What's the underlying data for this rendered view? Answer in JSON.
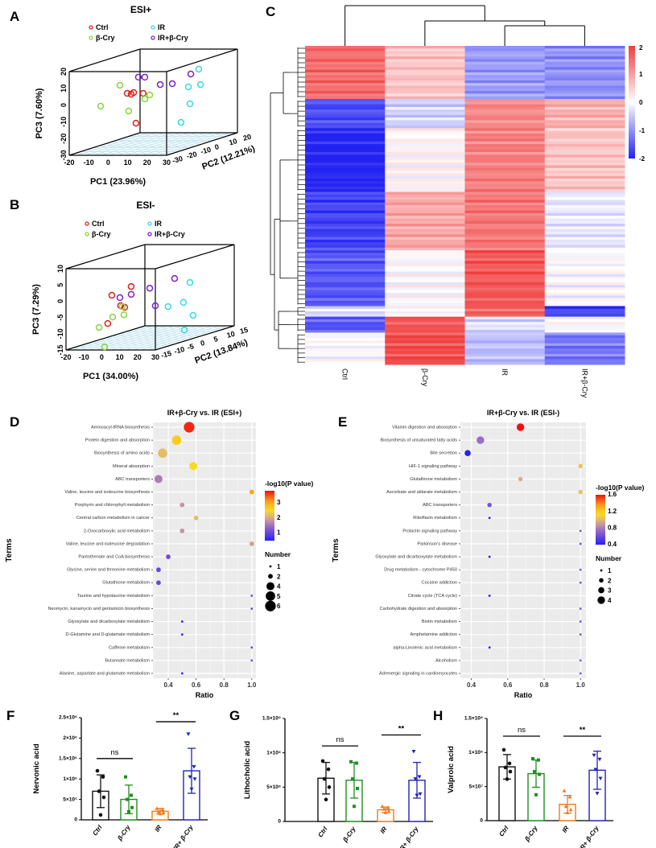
{
  "panels": {
    "A": "A",
    "B": "B",
    "C": "C",
    "D": "D",
    "E": "E",
    "F": "F",
    "G": "G",
    "H": "H"
  },
  "chart_data": [
    {
      "id": "A",
      "type": "scatter",
      "subtype": "3d-pca",
      "title": "ESI+",
      "xlabel": "PC1 (23.96%)",
      "ylabel": "PC3 (7.60%)",
      "zlabel": "PC2 (12.21%)",
      "xlim": [
        -20,
        30
      ],
      "ylim": [
        -30,
        20
      ],
      "zlim": [
        -30,
        20
      ],
      "xticks": [
        "-20",
        "-10",
        "0",
        "10",
        "20",
        "30"
      ],
      "yticks": [
        "-30",
        "-20",
        "-10",
        "0",
        "10",
        "20"
      ],
      "zticks": [
        "-30",
        "-20",
        "-10",
        "0",
        "10",
        "20"
      ],
      "legend_position": "top",
      "series": [
        {
          "name": "Ctrl",
          "color": "#e0201c",
          "points": [
            [
              2.5,
              -20,
              4.3
            ],
            [
              4.5,
              -20,
              3.8
            ],
            [
              5.8,
              -20,
              4.8
            ],
            [
              10.7,
              -20,
              4.3
            ],
            [
              7.0,
              -20,
              -13.5
            ]
          ]
        },
        {
          "name": "β-Cry",
          "color": "#88d43c",
          "points": [
            [
              2.4,
              -25,
              10.5
            ],
            [
              17.7,
              -25,
              4.7
            ],
            [
              15.2,
              -25,
              2.3
            ],
            [
              -7.5,
              -25,
              -2.0
            ],
            [
              6.9,
              -25,
              -4.9
            ]
          ]
        },
        {
          "name": "IR",
          "color": "#3ad8e0",
          "points": [
            [
              17.4,
              10,
              10.7
            ],
            [
              18.3,
              10,
              1.5
            ],
            [
              12.1,
              10,
              0.1
            ],
            [
              12.9,
              10,
              -10.0
            ],
            [
              8.3,
              10,
              -21.1
            ]
          ]
        },
        {
          "name": "IR+β-Cry",
          "color": "#7a22c8",
          "points": [
            [
              -6.3,
              0,
              8.6
            ],
            [
              -3.0,
              0,
              8.6
            ],
            [
              4.9,
              0,
              4.2
            ],
            [
              11.1,
              0,
              4.7
            ],
            [
              20.6,
              0,
              10.5
            ]
          ]
        }
      ]
    },
    {
      "id": "B",
      "type": "scatter",
      "subtype": "3d-pca",
      "title": "ESI-",
      "xlabel": "PC1 (34.00%)",
      "ylabel": "PC3 (7.29%)",
      "zlabel": "PC2 (13.84%)",
      "xlim": [
        -20,
        30
      ],
      "ylim": [
        -15,
        10
      ],
      "zlim": [
        -15,
        15
      ],
      "xticks": [
        "-20",
        "-10",
        "0",
        "10",
        "20",
        "30"
      ],
      "yticks": [
        "-15",
        "-10",
        "-5",
        "0",
        "5",
        "10"
      ],
      "zticks": [
        "-15",
        "-10",
        "-5",
        "0",
        "5",
        "10",
        "15"
      ],
      "legend_position": "top",
      "series": [
        {
          "name": "Ctrl",
          "color": "#e0201c",
          "points": [
            [
              9.1,
              -10,
              3.3
            ],
            [
              -1.7,
              -10,
              0.6
            ],
            [
              3.2,
              -10,
              -2.6
            ],
            [
              5.5,
              -10,
              -3.1
            ],
            [
              -4.0,
              -10,
              -8.1
            ]
          ]
        },
        {
          "name": "β-Cry",
          "color": "#88d43c",
          "points": [
            [
              7.1,
              -12,
              -2.4
            ],
            [
              8.0,
              -12,
              -4.9
            ],
            [
              1.7,
              -12,
              -5.6
            ],
            [
              -5.9,
              -12,
              -8.8
            ],
            [
              -2.8,
              -12,
              -14.8
            ]
          ]
        },
        {
          "name": "IR",
          "color": "#3ad8e0",
          "points": [
            [
              19.9,
              5,
              0.8
            ],
            [
              16.3,
              5,
              -5.3
            ],
            [
              7.7,
              5,
              -6.6
            ],
            [
              21.7,
              5,
              -9.3
            ],
            [
              16.8,
              5,
              -13.8
            ]
          ]
        },
        {
          "name": "IR+β-Cry",
          "color": "#7a22c8",
          "points": [
            [
              18.7,
              0,
              3.3
            ],
            [
              4.8,
              0,
              0.3
            ],
            [
              -11.9,
              0,
              -2.6
            ],
            [
              -5.6,
              0,
              -1.6
            ],
            [
              7.9,
              0,
              -5.1
            ]
          ]
        }
      ]
    },
    {
      "id": "C",
      "type": "heatmap",
      "columns": [
        "Ctrl",
        "β-Cry",
        "IR",
        "IR+β-Cry"
      ],
      "color_range": [
        -2,
        2
      ],
      "colorbar_ticks": [
        "2",
        "1",
        "0",
        "-1",
        "-2"
      ],
      "colors": {
        "low": "#2222f2",
        "mid": "#ffffff",
        "high": "#f03c3c"
      },
      "row_clusters": [
        {
          "rows": 20,
          "values": [
            1.5,
            0.6,
            -0.9,
            -1.0
          ]
        },
        {
          "rows": 11,
          "values": [
            -1.6,
            -0.4,
            1.2,
            0.8
          ]
        },
        {
          "rows": 24,
          "values": [
            -2.0,
            0.1,
            1.3,
            0.6
          ]
        },
        {
          "rows": 22,
          "values": [
            -1.7,
            0.9,
            1.4,
            -0.2
          ]
        },
        {
          "rows": 21,
          "values": [
            -1.5,
            0.0,
            1.7,
            0.0
          ]
        },
        {
          "rows": 4,
          "values": [
            -0.3,
            0.0,
            1.6,
            -1.7
          ]
        },
        {
          "rows": 6,
          "values": [
            -1.5,
            1.7,
            -0.3,
            0.0
          ]
        },
        {
          "rows": 12,
          "values": [
            0.0,
            1.8,
            -0.6,
            -1.2
          ]
        }
      ]
    },
    {
      "id": "D",
      "type": "scatter",
      "subtype": "bubble",
      "title": "IR+β-Cry vs. IR (ESI+)",
      "xlabel": "Ratio",
      "ylabel": "Terms",
      "xlim": [
        0.29,
        1.03
      ],
      "xticks": [
        "0.4",
        "0.6",
        "0.8",
        "1.0"
      ],
      "grid": true,
      "color_label": "-log10(P value)",
      "color_range": [
        0.5,
        3.8
      ],
      "color_ticks": [
        "3",
        "2",
        "1"
      ],
      "size_label": "Number",
      "size_legend": [
        1,
        2,
        4,
        5,
        6
      ],
      "legend_position": "right",
      "terms": [
        {
          "term": "Aminoacyl-tRNA biosynthesis",
          "ratio": 0.55,
          "logp": 3.7,
          "number": 6
        },
        {
          "term": "Protein digestion and absorption",
          "ratio": 0.46,
          "logp": 2.7,
          "number": 5
        },
        {
          "term": "Biosynthesis of amino acids",
          "ratio": 0.36,
          "logp": 2.2,
          "number": 5
        },
        {
          "term": "Mineral absorption",
          "ratio": 0.58,
          "logp": 2.5,
          "number": 4
        },
        {
          "term": "ABC transporters",
          "ratio": 0.33,
          "logp": 1.6,
          "number": 4
        },
        {
          "term": "Valine, leucine and isoleucine biosynthesis",
          "ratio": 1.0,
          "logp": 3.0,
          "number": 2
        },
        {
          "term": "Porphyrin and chlorophyll metabolism",
          "ratio": 0.5,
          "logp": 1.8,
          "number": 2
        },
        {
          "term": "Central carbon metabolism in cancer",
          "ratio": 0.6,
          "logp": 2.2,
          "number": 2
        },
        {
          "term": "2-Oxocarboxylic acid metabolism",
          "ratio": 0.5,
          "logp": 1.8,
          "number": 2
        },
        {
          "term": "Valine, leucine and isoleucine degradation",
          "ratio": 1.0,
          "logp": 1.9,
          "number": 2
        },
        {
          "term": "Pantothenate and CoA biosynthesis",
          "ratio": 0.4,
          "logp": 1.1,
          "number": 2
        },
        {
          "term": "Glycine, serine and threonine metabolism",
          "ratio": 0.33,
          "logp": 1.0,
          "number": 2
        },
        {
          "term": "Glutathione metabolism",
          "ratio": 0.33,
          "logp": 1.0,
          "number": 2
        },
        {
          "term": "Taurine and hypotaurine metabolism",
          "ratio": 1.0,
          "logp": 1.0,
          "number": 1
        },
        {
          "term": "Neomycin, kanamycin and gentamicin biosynthesis",
          "ratio": 1.0,
          "logp": 1.0,
          "number": 1
        },
        {
          "term": "Glyoxylate and dicarboxylate metabolism",
          "ratio": 0.5,
          "logp": 0.6,
          "number": 1
        },
        {
          "term": "D-Glutamine and D-glutamate metabolism",
          "ratio": 0.5,
          "logp": 0.6,
          "number": 1
        },
        {
          "term": "Caffeine metabolism",
          "ratio": 1.0,
          "logp": 1.0,
          "number": 1
        },
        {
          "term": "Butanoate metabolism",
          "ratio": 1.0,
          "logp": 1.0,
          "number": 1
        },
        {
          "term": "Alanine, aspartate and glutamate metabolism",
          "ratio": 0.5,
          "logp": 0.6,
          "number": 1
        }
      ]
    },
    {
      "id": "E",
      "type": "scatter",
      "subtype": "bubble",
      "title": "IR+β-Cry vs. IR (ESI-)",
      "xlabel": "Ratio",
      "ylabel": "Terms",
      "xlim": [
        0.34,
        1.03
      ],
      "xticks": [
        "0.4",
        "0.6",
        "0.8",
        "1.0"
      ],
      "grid": true,
      "color_label": "-log10(P value)",
      "color_range": [
        0.4,
        1.6
      ],
      "color_ticks": [
        "1.6",
        "1.2",
        "0.8",
        "0.4"
      ],
      "size_label": "Number",
      "size_legend": [
        1,
        2,
        3,
        4
      ],
      "legend_position": "right",
      "terms": [
        {
          "term": "Vitamin digestion and absorption",
          "ratio": 0.67,
          "logp": 1.6,
          "number": 4
        },
        {
          "term": "Biosynthesis of unsaturated fatty acids",
          "ratio": 0.45,
          "logp": 0.75,
          "number": 4
        },
        {
          "term": "Bile secretion",
          "ratio": 0.38,
          "logp": 0.4,
          "number": 3
        },
        {
          "term": "HIF-1 signaling pathway",
          "ratio": 1.0,
          "logp": 1.05,
          "number": 2
        },
        {
          "term": "Glutathione metabolism",
          "ratio": 0.67,
          "logp": 0.95,
          "number": 2
        },
        {
          "term": "Ascorbate and aldarate metabolism",
          "ratio": 1.0,
          "logp": 1.05,
          "number": 2
        },
        {
          "term": "ABC transporters",
          "ratio": 0.5,
          "logp": 0.65,
          "number": 2
        },
        {
          "term": "Riboflavin metabolism",
          "ratio": 0.5,
          "logp": 0.35,
          "number": 1
        },
        {
          "term": "Prolactin signaling pathway",
          "ratio": 1.0,
          "logp": 0.65,
          "number": 1
        },
        {
          "term": "Parkinson's disease",
          "ratio": 1.0,
          "logp": 0.65,
          "number": 1
        },
        {
          "term": "Glyoxylate and dicarboxylate metabolism",
          "ratio": 0.5,
          "logp": 0.35,
          "number": 1
        },
        {
          "term": "Drug metabolism - cytochrome P450",
          "ratio": 1.0,
          "logp": 0.65,
          "number": 1
        },
        {
          "term": "Cocaine addiction",
          "ratio": 1.0,
          "logp": 0.65,
          "number": 1
        },
        {
          "term": "Citrate cycle (TCA cycle)",
          "ratio": 0.5,
          "logp": 0.35,
          "number": 1
        },
        {
          "term": "Carbohydrate digestion and absorption",
          "ratio": 1.0,
          "logp": 0.65,
          "number": 1
        },
        {
          "term": "Biotin metabolism",
          "ratio": 1.0,
          "logp": 0.65,
          "number": 1
        },
        {
          "term": "Amphetamine addiction",
          "ratio": 1.0,
          "logp": 0.65,
          "number": 1
        },
        {
          "term": "alpha-Linolenic acid metabolism",
          "ratio": 0.5,
          "logp": 0.35,
          "number": 1
        },
        {
          "term": "Alcoholism",
          "ratio": 1.0,
          "logp": 0.65,
          "number": 1
        },
        {
          "term": "Adrenergic signaling in cardiomyocytes",
          "ratio": 1.0,
          "logp": 0.65,
          "number": 1
        }
      ]
    },
    {
      "id": "F",
      "type": "bar",
      "ylabel": "Nervonic acid",
      "ylim": [
        0,
        2500000
      ],
      "yticks": [
        {
          "v": 0,
          "t": "0"
        },
        {
          "v": 500000,
          "t": "5×10⁵"
        },
        {
          "v": 1000000,
          "t": "1×10⁶"
        },
        {
          "v": 1500000,
          "t": "1.5×10⁶"
        },
        {
          "v": 2000000,
          "t": "2×10⁶"
        },
        {
          "v": 2500000,
          "t": "2.5×10⁶"
        }
      ],
      "categories": [
        "Ctrl",
        "β-Cry",
        "IR",
        "IR+ β-Cry"
      ],
      "colors": [
        "#111111",
        "#1f8f1f",
        "#f07a22",
        "#2222b8"
      ],
      "markers": [
        "circle",
        "square",
        "triangle-up",
        "triangle-down"
      ],
      "means": [
        700000,
        500000,
        210000,
        1200000
      ],
      "sd": [
        400000,
        350000,
        70000,
        550000
      ],
      "points": [
        [
          1200000,
          1050000,
          700000,
          550000,
          120000
        ],
        [
          1050000,
          600000,
          500000,
          300000,
          200000
        ],
        [
          280000,
          250000,
          200000,
          180000,
          150000
        ],
        [
          2100000,
          1300000,
          1050000,
          1000000,
          750000
        ]
      ],
      "significance": [
        {
          "pair": [
            0,
            1
          ],
          "label": "ns",
          "level": 1500000
        },
        {
          "pair": [
            2,
            3
          ],
          "label": "**",
          "level": 2400000
        }
      ]
    },
    {
      "id": "G",
      "type": "bar",
      "ylabel": "Lithocholic acid",
      "ylim": [
        0,
        1500000000
      ],
      "yticks": [
        {
          "v": 0,
          "t": "0"
        },
        {
          "v": 500000000,
          "t": "5×10⁸"
        },
        {
          "v": 1000000000,
          "t": "1×10⁹"
        },
        {
          "v": 1500000000,
          "t": "1.5×10⁹"
        }
      ],
      "categories": [
        "Ctrl",
        "β-Cry",
        "IR",
        "IR+ β-Cry"
      ],
      "colors": [
        "#111111",
        "#1f8f1f",
        "#f07a22",
        "#2222b8"
      ],
      "markers": [
        "circle",
        "square",
        "triangle-up",
        "triangle-down"
      ],
      "means": [
        630000000,
        600000000,
        170000000,
        600000000
      ],
      "sd": [
        230000000,
        260000000,
        40000000,
        260000000
      ],
      "points": [
        [
          880000000,
          760000000,
          620000000,
          500000000,
          320000000
        ],
        [
          870000000,
          850000000,
          620000000,
          480000000,
          220000000
        ],
        [
          220000000,
          200000000,
          180000000,
          150000000,
          130000000
        ],
        [
          1020000000,
          650000000,
          620000000,
          400000000,
          380000000
        ]
      ],
      "significance": [
        {
          "pair": [
            0,
            1
          ],
          "label": "ns",
          "level": 1100000000
        },
        {
          "pair": [
            2,
            3
          ],
          "label": "**",
          "level": 1260000000
        }
      ]
    },
    {
      "id": "H",
      "type": "bar",
      "ylabel": "Valproic acid",
      "ylim": [
        0,
        150000000
      ],
      "yticks": [
        {
          "v": 0,
          "t": "0"
        },
        {
          "v": 50000000,
          "t": "5×10⁷"
        },
        {
          "v": 100000000,
          "t": "1×10⁸"
        },
        {
          "v": 150000000,
          "t": "1.5×10⁸"
        }
      ],
      "categories": [
        "Ctrl",
        "β-Cry",
        "IR",
        "IR+ β-Cry"
      ],
      "colors": [
        "#111111",
        "#1f8f1f",
        "#f07a22",
        "#2222b8"
      ],
      "markers": [
        "circle",
        "square",
        "triangle-up",
        "triangle-down"
      ],
      "means": [
        79000000,
        69000000,
        24000000,
        74000000
      ],
      "sd": [
        18000000,
        20000000,
        13000000,
        28000000
      ],
      "points": [
        [
          104000000,
          84000000,
          78000000,
          72000000,
          61000000
        ],
        [
          91000000,
          89000000,
          72000000,
          68000000,
          38000000
        ],
        [
          44000000,
          35000000,
          21000000,
          16000000,
          12000000
        ],
        [
          96000000,
          90000000,
          75000000,
          62000000,
          40000000
        ]
      ],
      "significance": [
        {
          "pair": [
            0,
            1
          ],
          "label": "ns",
          "level": 124000000
        },
        {
          "pair": [
            2,
            3
          ],
          "label": "**",
          "level": 124000000
        }
      ]
    }
  ]
}
